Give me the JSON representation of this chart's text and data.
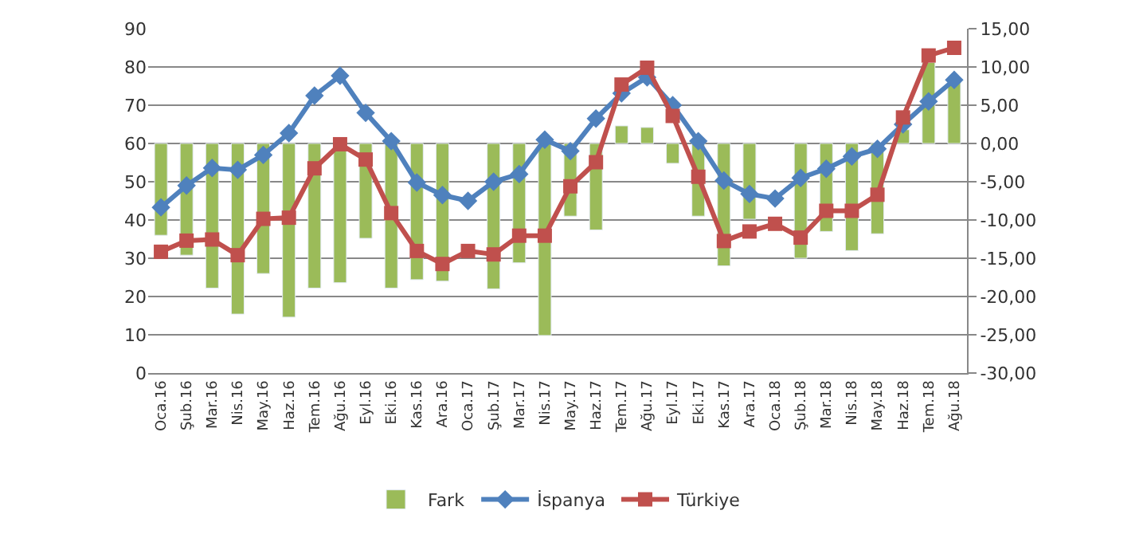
{
  "chart_data": {
    "type": "line",
    "categories": [
      "Oca.16",
      "Şub.16",
      "Mar.16",
      "Nis.16",
      "May.16",
      "Haz.16",
      "Tem.16",
      "Ağu.16",
      "Eyl.16",
      "Eki.16",
      "Kas.16",
      "Ara.16",
      "Oca.17",
      "Şub.17",
      "Mar.17",
      "Nis.17",
      "May.17",
      "Haz.17",
      "Tem.17",
      "Ağu.17",
      "Eyl.17",
      "Eki.17",
      "Kas.17",
      "Ara.17",
      "Oca.18",
      "Şub.18",
      "Mar.18",
      "Nis.18",
      "May.18",
      "Haz.18",
      "Tem.18",
      "Ağu.18"
    ],
    "series": [
      {
        "name": "Fark",
        "type": "bar",
        "axis": "y2",
        "color": "#9bbb59",
        "values": [
          -12,
          -14.6,
          -18.9,
          -22.3,
          -17,
          -22.7,
          -18.9,
          -18.2,
          -12.4,
          -18.9,
          -17.8,
          -18,
          null,
          -19,
          -15.6,
          -25.1,
          -9.5,
          -11.3,
          2.3,
          2.1,
          -2.6,
          -9.5,
          -16,
          -9.9,
          null,
          -15,
          -11.5,
          -14,
          -11.8,
          1.8,
          10.6,
          8.1
        ]
      },
      {
        "name": "İspanya",
        "marker": "diamond",
        "color": "#4f81bd",
        "values": [
          43.3,
          49,
          53.6,
          53.1,
          57,
          62.7,
          72.5,
          77.7,
          68,
          60.6,
          49.8,
          46.5,
          45,
          50,
          52,
          61,
          58,
          66.5,
          73.1,
          77.3,
          70,
          60.6,
          50.3,
          46.8,
          45.6,
          51,
          53.4,
          56.6,
          58.6,
          65,
          71,
          76.6
        ]
      },
      {
        "name": "Türkiye",
        "marker": "square",
        "color": "#c0504d",
        "values": [
          31.7,
          34.6,
          34.9,
          30.8,
          40.3,
          40.6,
          53.5,
          59.8,
          55.8,
          41.8,
          31.9,
          28.5,
          31.9,
          31,
          35.9,
          35.9,
          48.8,
          55.1,
          75.4,
          79.8,
          67.2,
          51.3,
          34.5,
          37,
          39,
          35.4,
          42.4,
          42.4,
          46.6,
          66.8,
          83,
          85
        ]
      }
    ],
    "ylim": [
      0,
      90
    ],
    "yticks": [
      0,
      10,
      20,
      30,
      40,
      50,
      60,
      70,
      80,
      90
    ],
    "y2lim": [
      -30,
      15
    ],
    "y2ticks": [
      {
        "value": -30,
        "label": "-30,00"
      },
      {
        "value": -25,
        "label": "-25,00"
      },
      {
        "value": -20,
        "label": "-20,00"
      },
      {
        "value": -15,
        "label": "-15,00"
      },
      {
        "value": -10,
        "label": "-10,00"
      },
      {
        "value": -5,
        "label": "-5,00"
      },
      {
        "value": 0,
        "label": "0,00"
      },
      {
        "value": 5,
        "label": "5,00"
      },
      {
        "value": 10,
        "label": "10,00"
      },
      {
        "value": 15,
        "label": "15,00"
      }
    ],
    "grid": "y",
    "legend": "bottom"
  }
}
